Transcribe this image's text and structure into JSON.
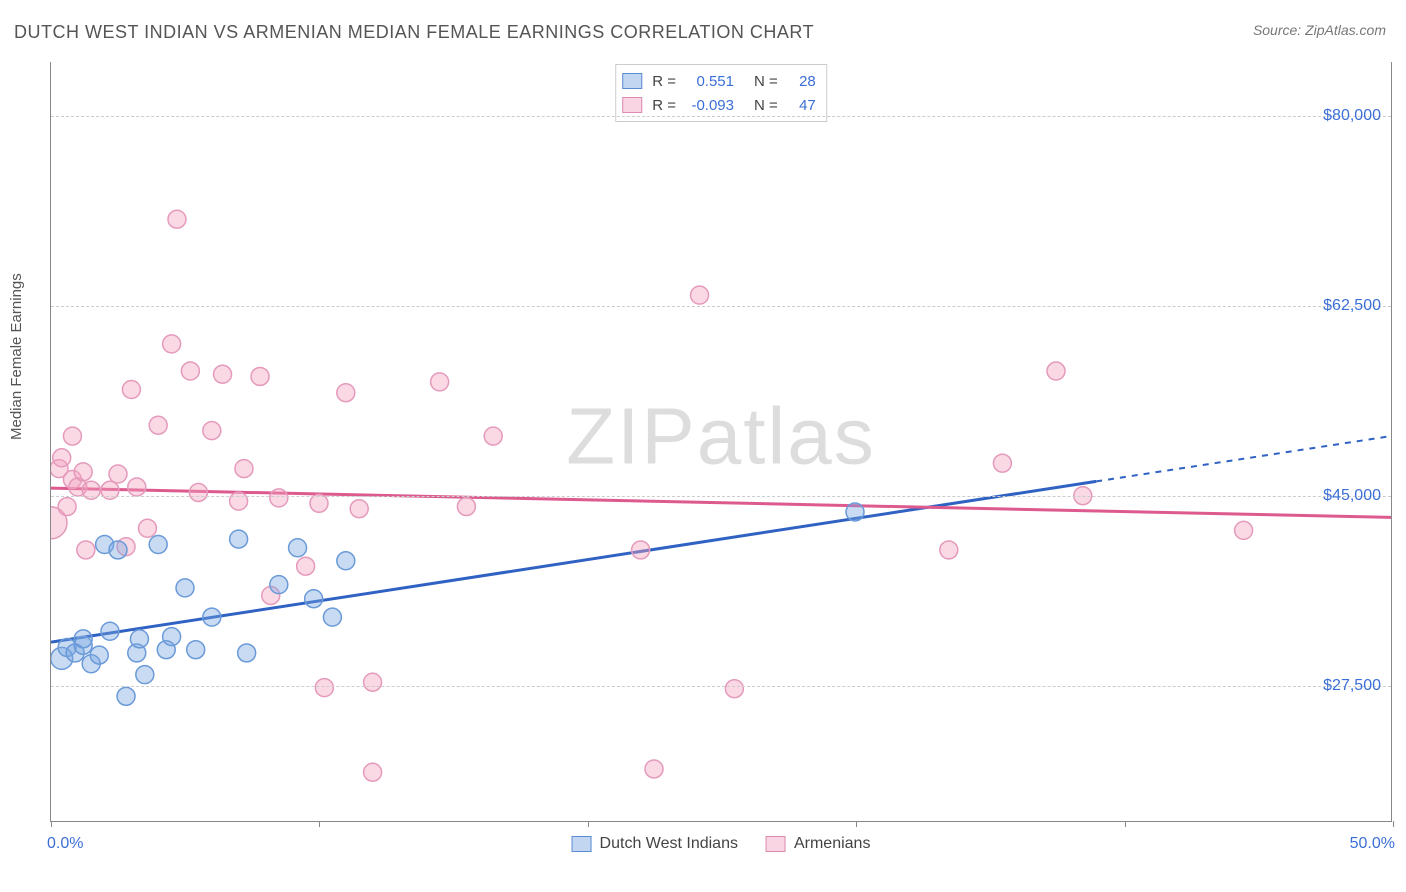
{
  "title": "DUTCH WEST INDIAN VS ARMENIAN MEDIAN FEMALE EARNINGS CORRELATION CHART",
  "source": "Source: ZipAtlas.com",
  "ylabel": "Median Female Earnings",
  "watermark_a": "ZIP",
  "watermark_b": "atlas",
  "chart": {
    "type": "scatter",
    "xlim": [
      0,
      50
    ],
    "ylim": [
      15000,
      85000
    ],
    "x_ticks": [
      0,
      10,
      20,
      30,
      40,
      50
    ],
    "x_labels": {
      "0": "0.0%",
      "50": "50.0%"
    },
    "y_grid": [
      27500,
      45000,
      62500,
      80000
    ],
    "y_labels": [
      "$27,500",
      "$45,000",
      "$62,500",
      "$80,000"
    ],
    "grid_color": "#cccccc",
    "axis_color": "#888888",
    "label_color": "#3b6fd6",
    "background_color": "#ffffff",
    "marker_radius": 9,
    "marker_stroke_width": 1.5,
    "line_width": 3,
    "series": [
      {
        "name": "Dutch West Indians",
        "fill": "rgba(120,165,226,0.40)",
        "stroke": "#6a9ad8",
        "line_color": "#2f62c2",
        "R": "0.551",
        "N": "28",
        "trend": {
          "x1": 0,
          "y1": 31500,
          "x2": 50,
          "y2": 50500,
          "solid_to_x": 39
        },
        "points": [
          {
            "x": 0.4,
            "y": 30000,
            "r": 11
          },
          {
            "x": 0.6,
            "y": 31000
          },
          {
            "x": 0.9,
            "y": 30500
          },
          {
            "x": 1.2,
            "y": 31200
          },
          {
            "x": 1.5,
            "y": 29500
          },
          {
            "x": 1.8,
            "y": 30300
          },
          {
            "x": 1.2,
            "y": 31800
          },
          {
            "x": 2.0,
            "y": 40500
          },
          {
            "x": 2.5,
            "y": 40000
          },
          {
            "x": 2.2,
            "y": 32500
          },
          {
            "x": 2.8,
            "y": 26500
          },
          {
            "x": 3.2,
            "y": 30500
          },
          {
            "x": 3.3,
            "y": 31800
          },
          {
            "x": 3.5,
            "y": 28500
          },
          {
            "x": 4.0,
            "y": 40500
          },
          {
            "x": 4.3,
            "y": 30800
          },
          {
            "x": 4.5,
            "y": 32000
          },
          {
            "x": 5.0,
            "y": 36500
          },
          {
            "x": 5.4,
            "y": 30800
          },
          {
            "x": 6.0,
            "y": 33800
          },
          {
            "x": 7.0,
            "y": 41000
          },
          {
            "x": 7.3,
            "y": 30500
          },
          {
            "x": 8.5,
            "y": 36800
          },
          {
            "x": 9.2,
            "y": 40200
          },
          {
            "x": 9.8,
            "y": 35500
          },
          {
            "x": 10.5,
            "y": 33800
          },
          {
            "x": 11.0,
            "y": 39000
          },
          {
            "x": 30.0,
            "y": 43500
          }
        ]
      },
      {
        "name": "Armenians",
        "fill": "rgba(242,160,190,0.40)",
        "stroke": "#e59abb",
        "line_color": "#dd5a8e",
        "R": "-0.093",
        "N": "47",
        "trend": {
          "x1": 0,
          "y1": 45700,
          "x2": 50,
          "y2": 43000,
          "solid_to_x": 50
        },
        "points": [
          {
            "x": 0.0,
            "y": 42500,
            "r": 16
          },
          {
            "x": 0.3,
            "y": 47500
          },
          {
            "x": 0.4,
            "y": 48500
          },
          {
            "x": 0.6,
            "y": 44000
          },
          {
            "x": 0.8,
            "y": 46500
          },
          {
            "x": 0.8,
            "y": 50500
          },
          {
            "x": 1.0,
            "y": 45800
          },
          {
            "x": 1.2,
            "y": 47200
          },
          {
            "x": 1.3,
            "y": 40000
          },
          {
            "x": 1.5,
            "y": 45500
          },
          {
            "x": 2.2,
            "y": 45500
          },
          {
            "x": 2.5,
            "y": 47000
          },
          {
            "x": 2.8,
            "y": 40300
          },
          {
            "x": 3.0,
            "y": 54800
          },
          {
            "x": 3.2,
            "y": 45800
          },
          {
            "x": 3.6,
            "y": 42000
          },
          {
            "x": 4.0,
            "y": 51500
          },
          {
            "x": 4.5,
            "y": 59000
          },
          {
            "x": 4.7,
            "y": 70500
          },
          {
            "x": 5.2,
            "y": 56500
          },
          {
            "x": 5.5,
            "y": 45300
          },
          {
            "x": 6.0,
            "y": 51000
          },
          {
            "x": 6.4,
            "y": 56200
          },
          {
            "x": 7.0,
            "y": 44500
          },
          {
            "x": 7.2,
            "y": 47500
          },
          {
            "x": 7.8,
            "y": 56000
          },
          {
            "x": 8.2,
            "y": 35800
          },
          {
            "x": 8.5,
            "y": 44800
          },
          {
            "x": 9.5,
            "y": 38500
          },
          {
            "x": 10.0,
            "y": 44300
          },
          {
            "x": 10.2,
            "y": 27300
          },
          {
            "x": 11.0,
            "y": 54500
          },
          {
            "x": 11.5,
            "y": 43800
          },
          {
            "x": 12.0,
            "y": 27800
          },
          {
            "x": 12.0,
            "y": 19500
          },
          {
            "x": 14.5,
            "y": 55500
          },
          {
            "x": 15.5,
            "y": 44000
          },
          {
            "x": 16.5,
            "y": 50500
          },
          {
            "x": 22.0,
            "y": 40000
          },
          {
            "x": 22.5,
            "y": 19800
          },
          {
            "x": 24.2,
            "y": 63500
          },
          {
            "x": 25.5,
            "y": 27200
          },
          {
            "x": 33.5,
            "y": 40000
          },
          {
            "x": 35.5,
            "y": 48000
          },
          {
            "x": 37.5,
            "y": 56500
          },
          {
            "x": 38.5,
            "y": 45000
          },
          {
            "x": 44.5,
            "y": 41800
          }
        ]
      }
    ]
  },
  "legend_labels": {
    "R": "R =",
    "N": "N ="
  }
}
